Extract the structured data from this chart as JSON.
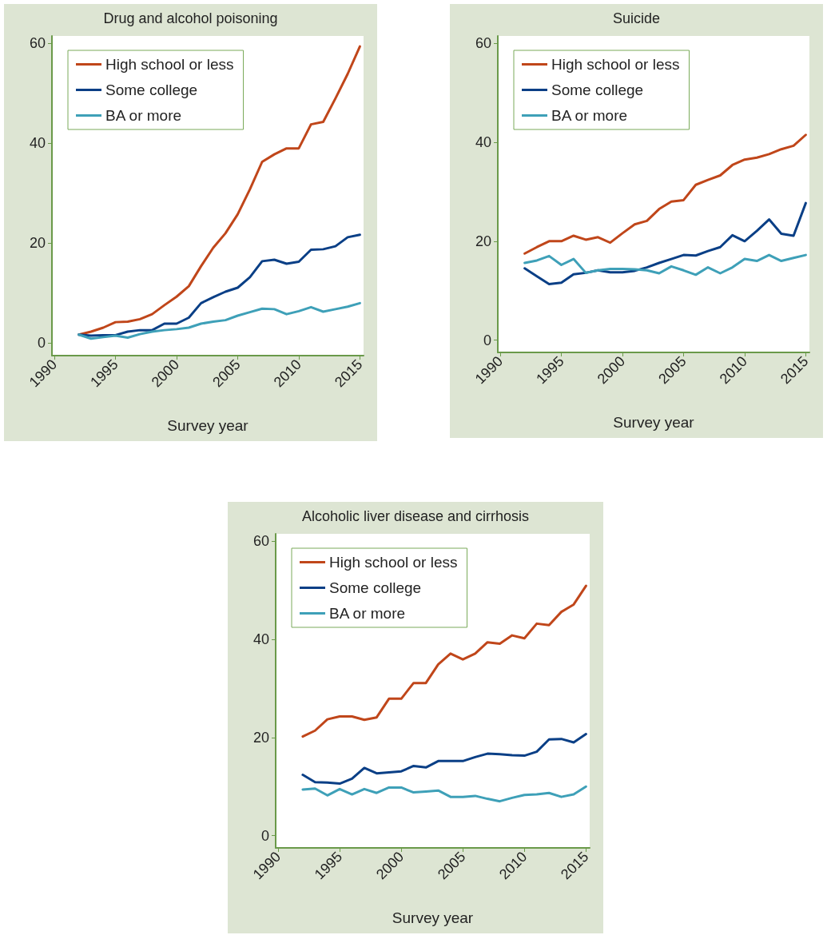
{
  "chart_data": [
    {
      "type": "line",
      "title": "Drug and alcohol poisoning",
      "xlabel": "Survey year",
      "x": [
        1992,
        1993,
        1994,
        1995,
        1996,
        1997,
        1998,
        1999,
        2000,
        2001,
        2002,
        2003,
        2004,
        2005,
        2006,
        2007,
        2008,
        2009,
        2010,
        2011,
        2012,
        2013,
        2014,
        2015
      ],
      "series": [
        {
          "name": "High school or less",
          "color": "#c0461a",
          "values": [
            1.7,
            2.3,
            3.1,
            4.2,
            4.3,
            4.8,
            5.8,
            7.6,
            9.3,
            11.4,
            15.4,
            19.1,
            22,
            25.8,
            30.8,
            36.3,
            37.8,
            39,
            39,
            43.8,
            44.3,
            49,
            53.9,
            59.4
          ]
        },
        {
          "name": "Some college",
          "color": "#0a3f86",
          "values": [
            1.7,
            1.5,
            1.6,
            1.6,
            2.3,
            2.6,
            2.6,
            3.9,
            3.9,
            5.1,
            8.0,
            9.2,
            10.3,
            11.1,
            13.2,
            16.4,
            16.7,
            15.9,
            16.3,
            18.7,
            18.8,
            19.4,
            21.2,
            21.7
          ]
        },
        {
          "name": "BA or more",
          "color": "#3ea0b8",
          "values": [
            1.7,
            0.9,
            1.2,
            1.5,
            1.1,
            1.8,
            2.3,
            2.6,
            2.8,
            3.1,
            3.9,
            4.3,
            4.6,
            5.5,
            6.2,
            6.9,
            6.8,
            5.8,
            6.4,
            7.2,
            6.3,
            6.8,
            7.3,
            8.0
          ]
        }
      ],
      "xlim": [
        1989.8,
        2015.3
      ],
      "xticks": [
        1990,
        1995,
        2000,
        2005,
        2010,
        2015
      ],
      "ylim": [
        -2.5,
        61.5
      ],
      "yticks": [
        0,
        20,
        40,
        60
      ],
      "grid": false,
      "legend": "top left",
      "marker": "none",
      "line_style": "solid"
    },
    {
      "type": "line",
      "title": "Suicide",
      "xlabel": "Survey year",
      "x": [
        1992,
        1993,
        1994,
        1995,
        1996,
        1997,
        1998,
        1999,
        2000,
        2001,
        2002,
        2003,
        2004,
        2005,
        2006,
        2007,
        2008,
        2009,
        2010,
        2011,
        2012,
        2013,
        2014,
        2015
      ],
      "series": [
        {
          "name": "High school or less",
          "color": "#c0461a",
          "values": [
            17.5,
            18.8,
            20,
            20,
            21.1,
            20.3,
            20.8,
            19.7,
            21.6,
            23.4,
            24.1,
            26.5,
            28.0,
            28.3,
            31.4,
            32.4,
            33.3,
            35.4,
            36.5,
            36.9,
            37.6,
            38.6,
            39.3,
            41.5
          ]
        },
        {
          "name": "Some college",
          "color": "#0a3f86",
          "values": [
            14.5,
            12.9,
            11.3,
            11.6,
            13.3,
            13.6,
            14.1,
            13.7,
            13.7,
            14.0,
            14.7,
            15.6,
            16.4,
            17.2,
            17.1,
            18.0,
            18.8,
            21.2,
            20,
            22.1,
            24.4,
            21.5,
            21.1,
            27.7
          ]
        },
        {
          "name": "BA or more",
          "color": "#3ea0b8",
          "values": [
            15.6,
            16.1,
            17,
            15.2,
            16.4,
            13.6,
            14.1,
            14.4,
            14.4,
            14.3,
            14.1,
            13.5,
            14.9,
            14.1,
            13.2,
            14.7,
            13.5,
            14.7,
            16.4,
            16.0,
            17.2,
            16.0,
            16.6,
            17.2
          ]
        }
      ],
      "xlim": [
        1989.8,
        2015.3
      ],
      "xticks": [
        1990,
        1995,
        2000,
        2005,
        2010,
        2015
      ],
      "ylim": [
        -2.5,
        61.5
      ],
      "yticks": [
        0,
        20,
        40,
        60
      ],
      "grid": false,
      "legend": "top left",
      "marker": "none",
      "line_style": "solid"
    },
    {
      "type": "line",
      "title": "Alcoholic liver disease and cirrhosis",
      "xlabel": "Survey year",
      "x": [
        1992,
        1993,
        1994,
        1995,
        1996,
        1997,
        1998,
        1999,
        2000,
        2001,
        2002,
        2003,
        2004,
        2005,
        2006,
        2007,
        2008,
        2009,
        2010,
        2011,
        2012,
        2013,
        2014,
        2015
      ],
      "series": [
        {
          "name": "High school or less",
          "color": "#c0461a",
          "values": [
            20.2,
            21.4,
            23.7,
            24.3,
            24.3,
            23.6,
            24.1,
            27.9,
            27.9,
            31.1,
            31.1,
            34.9,
            37.1,
            35.9,
            37.1,
            39.4,
            39.1,
            40.8,
            40.2,
            43.2,
            42.9,
            45.6,
            47.1,
            50.9
          ]
        },
        {
          "name": "Some college",
          "color": "#0a3f86",
          "values": [
            12.4,
            10.9,
            10.8,
            10.6,
            11.6,
            13.8,
            12.7,
            12.9,
            13.1,
            14.2,
            13.9,
            15.2,
            15.2,
            15.2,
            16.0,
            16.7,
            16.6,
            16.4,
            16.3,
            17.1,
            19.6,
            19.7,
            19.0,
            20.7
          ]
        },
        {
          "name": "BA or more",
          "color": "#3ea0b8",
          "values": [
            9.4,
            9.6,
            8.2,
            9.5,
            8.4,
            9.5,
            8.7,
            9.8,
            9.8,
            8.8,
            9.0,
            9.2,
            7.9,
            7.9,
            8.1,
            7.5,
            7.0,
            7.7,
            8.3,
            8.4,
            8.7,
            7.9,
            8.4,
            10.0
          ]
        }
      ],
      "xlim": [
        1989.8,
        2015.3
      ],
      "xticks": [
        1990,
        1995,
        2000,
        2005,
        2010,
        2015
      ],
      "ylim": [
        -2.5,
        61.5
      ],
      "yticks": [
        0,
        20,
        40,
        60
      ],
      "grid": false,
      "legend": "top left",
      "marker": "none",
      "line_style": "solid"
    }
  ]
}
